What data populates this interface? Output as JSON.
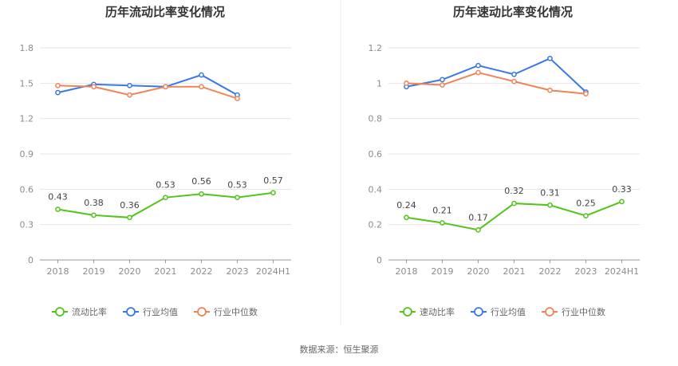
{
  "source": "数据来源：恒生聚源",
  "chart_data": [
    {
      "type": "line",
      "title": "历年流动比率变化情况",
      "categories": [
        "2018",
        "2019",
        "2020",
        "2021",
        "2022",
        "2023",
        "2024H1"
      ],
      "ylim": [
        0,
        1.8
      ],
      "yticks": [
        "0",
        "0.3",
        "0.6",
        "0.9",
        "1.2",
        "1.5",
        "1.8"
      ],
      "grid": true,
      "legend_position": "bottom",
      "series": [
        {
          "name": "流动比率",
          "color": "#52c41a",
          "values": [
            0.43,
            0.38,
            0.36,
            0.53,
            0.56,
            0.53,
            0.57
          ],
          "labels": [
            "0.43",
            "0.38",
            "0.36",
            "0.53",
            "0.56",
            "0.53",
            "0.57"
          ]
        },
        {
          "name": "行业均值",
          "color": "#3a78e7",
          "values": [
            1.42,
            1.49,
            1.48,
            1.47,
            1.57,
            1.4,
            null
          ]
        },
        {
          "name": "行业中位数",
          "color": "#f08456",
          "values": [
            1.48,
            1.47,
            1.4,
            1.47,
            1.47,
            1.37,
            null
          ]
        }
      ]
    },
    {
      "type": "line",
      "title": "历年速动比率变化情况",
      "categories": [
        "2018",
        "2019",
        "2020",
        "2021",
        "2022",
        "2023",
        "2024H1"
      ],
      "ylim": [
        0,
        1.2
      ],
      "yticks": [
        "0",
        "0.2",
        "0.4",
        "0.6",
        "0.8",
        "1",
        "1.2"
      ],
      "grid": true,
      "legend_position": "bottom",
      "series": [
        {
          "name": "速动比率",
          "color": "#52c41a",
          "values": [
            0.24,
            0.21,
            0.17,
            0.32,
            0.31,
            0.25,
            0.33
          ],
          "labels": [
            "0.24",
            "0.21",
            "0.17",
            "0.32",
            "0.31",
            "0.25",
            "0.33"
          ]
        },
        {
          "name": "行业均值",
          "color": "#3a78e7",
          "values": [
            0.98,
            1.02,
            1.1,
            1.05,
            1.14,
            0.95,
            null
          ]
        },
        {
          "name": "行业中位数",
          "color": "#f08456",
          "values": [
            1.0,
            0.99,
            1.06,
            1.01,
            0.96,
            0.94,
            null
          ]
        }
      ]
    }
  ]
}
